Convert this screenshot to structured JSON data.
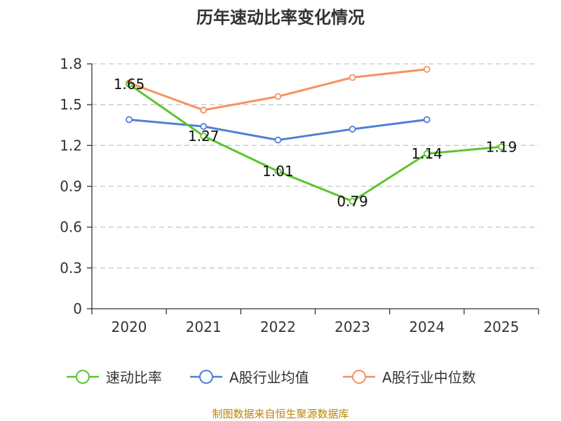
{
  "chart_data": {
    "type": "line",
    "title": "历年速动比率变化情况",
    "categories": [
      "2020",
      "2021",
      "2022",
      "2023",
      "2024",
      "2025"
    ],
    "ylim": [
      0,
      1.8
    ],
    "yticks": [
      "0",
      "0.3",
      "0.6",
      "0.9",
      "1.2",
      "1.5",
      "1.8"
    ],
    "ytick_values": [
      0,
      0.3,
      0.6,
      0.9,
      1.2,
      1.5,
      1.8
    ],
    "grid": true,
    "legend_position": "bottom",
    "series": [
      {
        "name": "速动比率",
        "color": "#5cc430",
        "values": [
          1.65,
          1.27,
          1.01,
          0.79,
          1.14,
          1.19
        ],
        "labels": [
          "1.65",
          "1.27",
          "1.01",
          "0.79",
          "1.14",
          "1.19"
        ]
      },
      {
        "name": "A股行业均值",
        "color": "#4f7fd6",
        "values": [
          1.39,
          1.34,
          1.24,
          1.32,
          1.39,
          null
        ]
      },
      {
        "name": "A股行业中位数",
        "color": "#f5925e",
        "values": [
          1.66,
          1.46,
          1.56,
          1.7,
          1.76,
          null
        ]
      }
    ]
  },
  "source_note": "制图数据来自恒生聚源数据库"
}
